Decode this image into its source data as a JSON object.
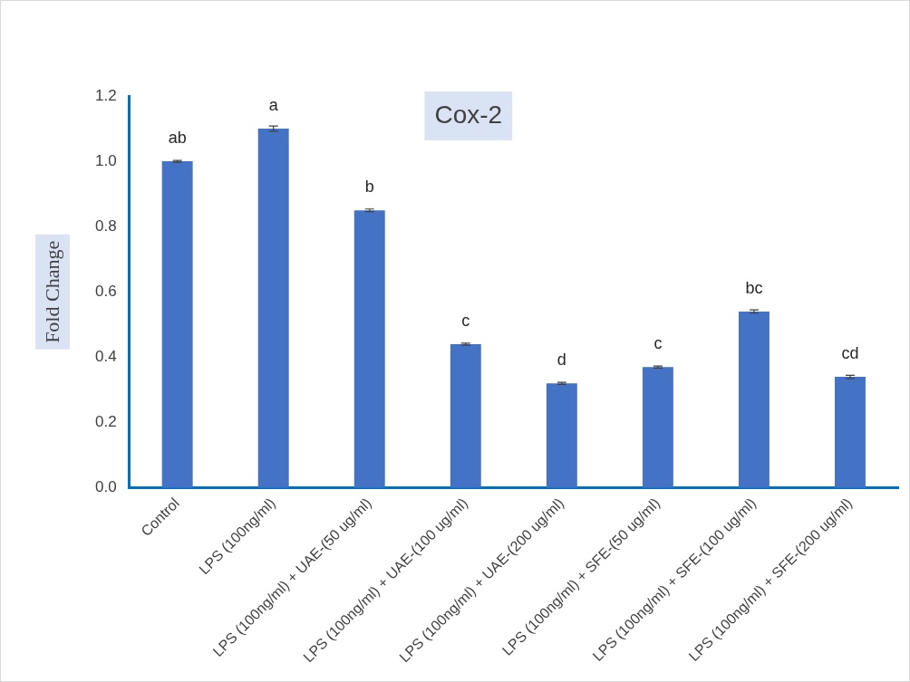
{
  "chart_data": {
    "type": "bar",
    "title": "Cox-2",
    "ylabel": "Fold Change",
    "categories": [
      "Control",
      "LPS (100ng/ml)",
      "LPS (100ng/ml) + UAE-(50 ug/ml)",
      "LPS (100ng/ml) + UAE-(100 ug/ml)",
      "LPS (100ng/ml) + UAE-(200 ug/ml)",
      "LPS (100ng/ml) + SFE-(50 ug/ml)",
      "LPS (100ng/ml) + SFE-(100 ug/ml)",
      "LPS (100ng/ml) + SFE-(200 ug/ml)"
    ],
    "values": [
      1.0,
      1.1,
      0.85,
      0.44,
      0.32,
      0.37,
      0.54,
      0.34
    ],
    "errors": [
      0.003,
      0.008,
      0.004,
      0.003,
      0.003,
      0.003,
      0.005,
      0.005
    ],
    "color": "#4472c4",
    "ylim": [
      0,
      1.2
    ],
    "yticks": [
      {
        "value": 0,
        "label": "0.0"
      },
      {
        "value": 0.2,
        "label": "0.2"
      },
      {
        "value": 0.4,
        "label": "0.4"
      },
      {
        "value": 0.6,
        "label": "0.6"
      },
      {
        "value": 0.8,
        "label": "0.8"
      },
      {
        "value": 1,
        "label": "1.0"
      },
      {
        "value": 1.2,
        "label": "1.2"
      }
    ],
    "grid": false,
    "legend": false,
    "annotations": [
      {
        "text": "ab",
        "x": "Control",
        "y": 1.0
      },
      {
        "text": "a",
        "x": "LPS (100ng/ml)",
        "y": 1.1
      },
      {
        "text": "b",
        "x": "LPS (100ng/ml) + UAE-(50 ug/ml)",
        "y": 0.85
      },
      {
        "text": "c",
        "x": "LPS (100ng/ml) + UAE-(100 ug/ml)",
        "y": 0.44
      },
      {
        "text": "d",
        "x": "LPS (100ng/ml) + UAE-(200 ug/ml)",
        "y": 0.32
      },
      {
        "text": "c",
        "x": "LPS (100ng/ml) + SFE-(50 ug/ml)",
        "y": 0.37
      },
      {
        "text": "bc",
        "x": "LPS (100ng/ml) + SFE-(100 ug/ml)",
        "y": 0.54
      },
      {
        "text": "cd",
        "x": "LPS (100ng/ml) + SFE-(200 ug/ml)",
        "y": 0.34
      }
    ]
  }
}
